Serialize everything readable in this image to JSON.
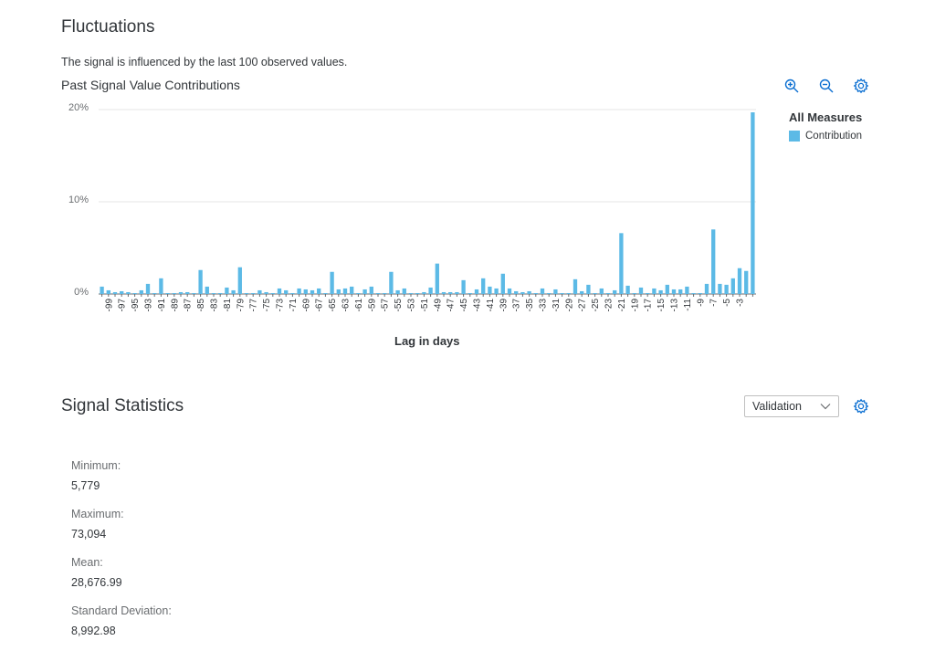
{
  "fluctuations": {
    "title": "Fluctuations",
    "description": "The signal is influenced by the last 100 observed values."
  },
  "chart_panel": {
    "toolbar": {
      "zoom_in_icon": "zoom-in-icon",
      "zoom_out_icon": "zoom-out-icon",
      "settings_icon": "gear-icon"
    },
    "legend": {
      "title": "All Measures",
      "items": [
        {
          "label": "Contribution",
          "color": "#5cbae6"
        }
      ]
    }
  },
  "chart_data": {
    "type": "bar",
    "title": "Past Signal Value Contributions",
    "xlabel": "Lag in days",
    "ylabel": "",
    "ylim": [
      0,
      20
    ],
    "y_ticks": [
      "0%",
      "10%",
      "20%"
    ],
    "y_tick_values": [
      0,
      10,
      20
    ],
    "grid": true,
    "legend_position": "right",
    "bar_color": "#5cbae6",
    "categories": [
      -100,
      -99,
      -98,
      -97,
      -96,
      -95,
      -94,
      -93,
      -92,
      -91,
      -90,
      -89,
      -88,
      -87,
      -86,
      -85,
      -84,
      -83,
      -82,
      -81,
      -80,
      -79,
      -78,
      -77,
      -76,
      -75,
      -74,
      -73,
      -72,
      -71,
      -70,
      -69,
      -68,
      -67,
      -66,
      -65,
      -64,
      -63,
      -62,
      -61,
      -60,
      -59,
      -58,
      -57,
      -56,
      -55,
      -54,
      -53,
      -52,
      -51,
      -50,
      -49,
      -48,
      -47,
      -46,
      -45,
      -44,
      -43,
      -42,
      -41,
      -40,
      -39,
      -38,
      -37,
      -36,
      -35,
      -34,
      -33,
      -32,
      -31,
      -30,
      -29,
      -28,
      -27,
      -26,
      -25,
      -24,
      -23,
      -22,
      -21,
      -20,
      -19,
      -18,
      -17,
      -16,
      -15,
      -14,
      -13,
      -12,
      -11,
      -10,
      -9,
      -8,
      -7,
      -6,
      -5,
      -4,
      -3,
      -2,
      -1
    ],
    "tick_labels": [
      "-99",
      "-97",
      "-95",
      "-93",
      "-91",
      "-89",
      "-87",
      "-85",
      "-83",
      "-81",
      "-79",
      "-77",
      "-75",
      "-73",
      "-71",
      "-69",
      "-67",
      "-65",
      "-63",
      "-61",
      "-59",
      "-57",
      "-55",
      "-53",
      "-51",
      "-49",
      "-47",
      "-45",
      "-43",
      "-41",
      "-39",
      "-37",
      "-35",
      "-33",
      "-31",
      "-29",
      "-27",
      "-25",
      "-23",
      "-21",
      "-19",
      "-17",
      "-15",
      "-13",
      "-11",
      "-9",
      "-7",
      "-5",
      "-3"
    ],
    "values": [
      0.8,
      0.4,
      0.2,
      0.3,
      0.2,
      0.1,
      0.4,
      1.1,
      0.1,
      1.7,
      0.1,
      0.1,
      0.2,
      0.2,
      0.1,
      2.6,
      0.8,
      0.1,
      0.1,
      0.7,
      0.4,
      2.9,
      0.1,
      0.1,
      0.4,
      0.2,
      0.1,
      0.6,
      0.4,
      0.1,
      0.6,
      0.5,
      0.4,
      0.6,
      0.1,
      2.4,
      0.5,
      0.6,
      0.8,
      0.1,
      0.5,
      0.8,
      0.1,
      0.1,
      2.4,
      0.4,
      0.6,
      0.1,
      0.1,
      0.2,
      0.7,
      3.3,
      0.2,
      0.2,
      0.2,
      1.5,
      0.1,
      0.5,
      1.7,
      0.8,
      0.6,
      2.2,
      0.6,
      0.3,
      0.2,
      0.3,
      0.1,
      0.6,
      0.1,
      0.5,
      0.1,
      0.1,
      1.6,
      0.3,
      1.0,
      0.1,
      0.6,
      0.1,
      0.4,
      6.6,
      0.9,
      0.1,
      0.7,
      0.1,
      0.6,
      0.4,
      1.0,
      0.5,
      0.5,
      0.8,
      0.1,
      0.1,
      1.1,
      7.0,
      1.1,
      1.0,
      1.7,
      2.8,
      2.5,
      19.7
    ]
  },
  "signal_statistics": {
    "title": "Signal Statistics",
    "selector_value": "Validation",
    "chevron_icon": "chevron-down-icon",
    "settings_icon": "gear-icon",
    "stats": [
      {
        "label": "Minimum:",
        "value": "5,779"
      },
      {
        "label": "Maximum:",
        "value": "73,094"
      },
      {
        "label": "Mean:",
        "value": "28,676.99"
      },
      {
        "label": "Standard Deviation:",
        "value": "8,992.98"
      }
    ]
  }
}
